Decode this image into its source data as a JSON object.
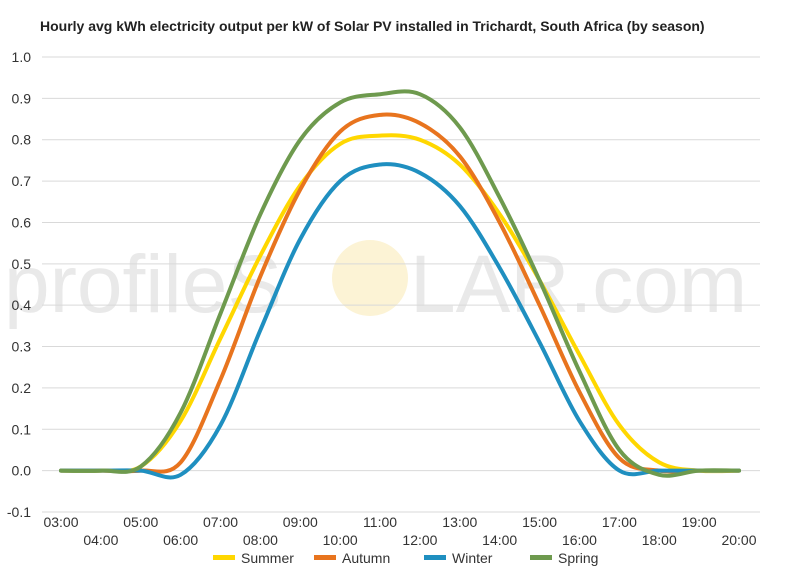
{
  "chart_data": {
    "type": "line",
    "title": "Hourly avg kWh electricity output per kW of Solar PV installed in Trichardt, South Africa (by season)",
    "xlabel": "",
    "ylabel": "",
    "ylim": [
      -0.1,
      1.0
    ],
    "yticks": [
      "-0.1",
      "0.0",
      "0.1",
      "0.2",
      "0.3",
      "0.4",
      "0.5",
      "0.6",
      "0.7",
      "0.8",
      "0.9",
      "1.0"
    ],
    "x": [
      "03:00",
      "04:00",
      "05:00",
      "06:00",
      "07:00",
      "08:00",
      "09:00",
      "10:00",
      "11:00",
      "12:00",
      "13:00",
      "14:00",
      "15:00",
      "16:00",
      "17:00",
      "18:00",
      "19:00",
      "20:00"
    ],
    "grid": true,
    "legend": "bottom",
    "series": [
      {
        "name": "Summer",
        "color": "#ffd700",
        "values": [
          0.0,
          0.0,
          0.01,
          0.12,
          0.32,
          0.52,
          0.69,
          0.79,
          0.81,
          0.8,
          0.74,
          0.62,
          0.46,
          0.28,
          0.11,
          0.02,
          0.0,
          0.0
        ]
      },
      {
        "name": "Autumn",
        "color": "#e8741e",
        "values": [
          0.0,
          0.0,
          0.0,
          0.02,
          0.22,
          0.47,
          0.68,
          0.82,
          0.86,
          0.84,
          0.76,
          0.6,
          0.4,
          0.19,
          0.03,
          0.0,
          0.0,
          0.0
        ]
      },
      {
        "name": "Winter",
        "color": "#1f8fc0",
        "values": [
          0.0,
          0.0,
          0.0,
          -0.01,
          0.11,
          0.34,
          0.56,
          0.7,
          0.74,
          0.72,
          0.64,
          0.49,
          0.31,
          0.12,
          0.0,
          0.0,
          0.0,
          0.0
        ]
      },
      {
        "name": "Spring",
        "color": "#6e9a4e",
        "values": [
          0.0,
          0.0,
          0.01,
          0.14,
          0.38,
          0.62,
          0.8,
          0.89,
          0.91,
          0.91,
          0.83,
          0.66,
          0.46,
          0.24,
          0.05,
          -0.01,
          0.0,
          0.0
        ]
      }
    ]
  },
  "watermark": {
    "left_text": "profileS",
    "right_text": "LAR.com",
    "sun_color": "#fcf3d5"
  }
}
